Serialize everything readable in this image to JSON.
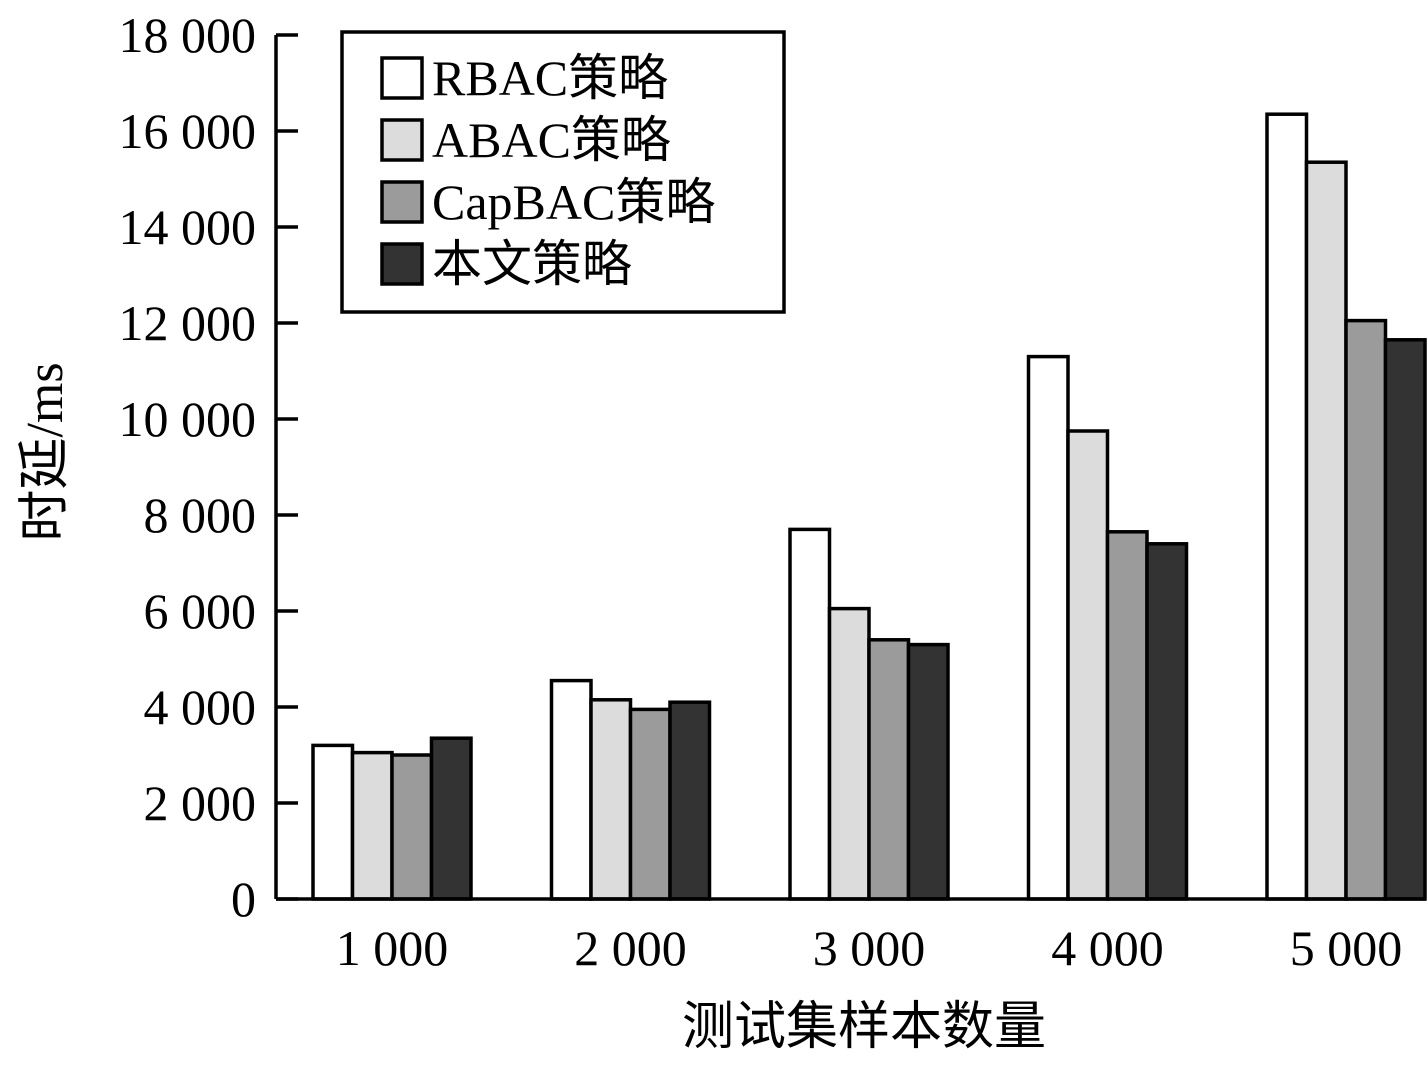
{
  "chart_data": {
    "type": "bar",
    "title": "",
    "xlabel": "测试集样本数量",
    "ylabel": "时延/ms",
    "categories": [
      "1 000",
      "2 000",
      "3 000",
      "4 000",
      "5 000"
    ],
    "ylim": [
      0,
      18000
    ],
    "yticks": [
      0,
      2000,
      4000,
      6000,
      8000,
      10000,
      12000,
      14000,
      16000,
      18000
    ],
    "ytick_labels": [
      "0",
      "2 000",
      "4 000",
      "6 000",
      "8 000",
      "10 000",
      "12 000",
      "14 000",
      "16 000",
      "18 000"
    ],
    "grid": false,
    "legend_position": "top-left",
    "series": [
      {
        "name": "RBAC策略",
        "color": "#ffffff",
        "values": [
          3200,
          4550,
          7700,
          11300,
          16350
        ]
      },
      {
        "name": "ABAC策略",
        "color": "#dcdcdc",
        "values": [
          3050,
          4150,
          6050,
          9750,
          15350
        ]
      },
      {
        "name": "CapBAC策略",
        "color": "#9b9b9b",
        "values": [
          3000,
          3950,
          5400,
          7650,
          12050
        ]
      },
      {
        "name": "本文策略",
        "color": "#333333",
        "values": [
          3350,
          4100,
          5300,
          7400,
          11650
        ]
      }
    ]
  }
}
